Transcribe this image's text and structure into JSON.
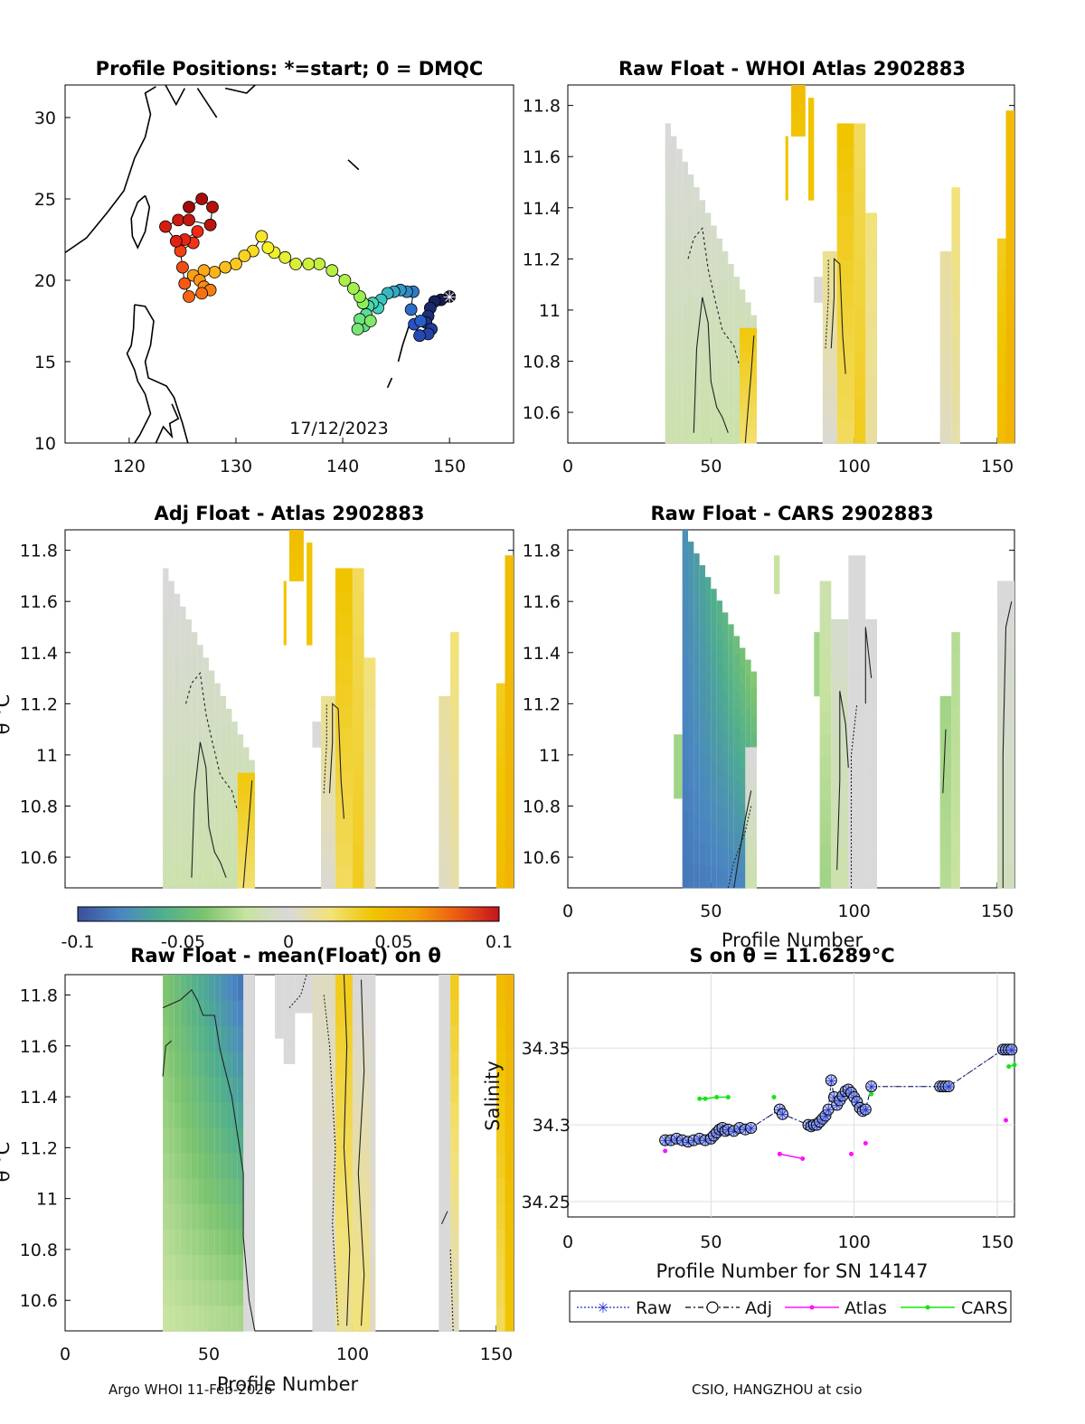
{
  "colors": {
    "scale": [
      "#3b4f9a",
      "#4a86c2",
      "#4fae8d",
      "#7cc46f",
      "#c8e3a0",
      "#d9d9d9",
      "#f2e27a",
      "#f0c500",
      "#f3a20a",
      "#ec5c12",
      "#c4141e"
    ],
    "raw_marker": "#1f2fd0",
    "adj_marker": "#000000",
    "atlas": "#ff10ff",
    "cars": "#14e614"
  },
  "footer": {
    "left": "Argo WHOI 11-Feb-2026",
    "right": "CSIO, HANGZHOU at csio"
  },
  "chart_data": [
    {
      "id": "positions",
      "type": "scatter",
      "title": "Profile Positions: *=start; 0 = DMQC",
      "xlim": [
        114,
        156
      ],
      "ylim": [
        10,
        32
      ],
      "xticks": [
        "120",
        "130",
        "140",
        "150"
      ],
      "yticks": [
        "10",
        "15",
        "20",
        "25",
        "30"
      ],
      "date_label": "17/12/2023",
      "track": [
        [
          150.0,
          19.0
        ],
        [
          149.2,
          18.8
        ],
        [
          148.6,
          18.7
        ],
        [
          148.2,
          18.3
        ],
        [
          148.0,
          17.8
        ],
        [
          147.8,
          17.4
        ],
        [
          148.3,
          17.0
        ],
        [
          148.0,
          16.7
        ],
        [
          147.2,
          16.6
        ],
        [
          146.7,
          17.3
        ],
        [
          147.3,
          17.5
        ],
        [
          146.4,
          18.2
        ],
        [
          146.6,
          19.3
        ],
        [
          146.0,
          19.3
        ],
        [
          145.4,
          19.4
        ],
        [
          144.8,
          19.3
        ],
        [
          144.2,
          19.2
        ],
        [
          143.6,
          18.8
        ],
        [
          143.3,
          18.3
        ],
        [
          142.8,
          18.6
        ],
        [
          142.4,
          18.4
        ],
        [
          142.2,
          17.9
        ],
        [
          142.0,
          17.2
        ],
        [
          141.6,
          17.6
        ],
        [
          141.4,
          17.0
        ],
        [
          142.6,
          17.5
        ],
        [
          141.9,
          18.6
        ],
        [
          141.6,
          19.0
        ],
        [
          141.0,
          19.5
        ],
        [
          140.2,
          20.0
        ],
        [
          139.0,
          20.6
        ],
        [
          137.8,
          21.0
        ],
        [
          136.8,
          21.0
        ],
        [
          135.6,
          21.0
        ],
        [
          134.6,
          21.4
        ],
        [
          133.6,
          21.7
        ],
        [
          133.0,
          22.0
        ],
        [
          132.4,
          22.7
        ],
        [
          131.6,
          21.8
        ],
        [
          130.8,
          21.5
        ],
        [
          130.0,
          21.0
        ],
        [
          129.0,
          20.8
        ],
        [
          128.0,
          20.5
        ],
        [
          127.0,
          20.6
        ],
        [
          126.0,
          20.3
        ],
        [
          126.6,
          20.0
        ],
        [
          127.0,
          19.6
        ],
        [
          127.6,
          19.4
        ],
        [
          126.8,
          19.2
        ],
        [
          125.6,
          19.0
        ],
        [
          125.2,
          19.8
        ],
        [
          125.0,
          20.8
        ],
        [
          124.8,
          21.8
        ],
        [
          126.0,
          22.3
        ],
        [
          126.4,
          23.0
        ],
        [
          125.2,
          22.5
        ],
        [
          124.4,
          22.4
        ],
        [
          123.4,
          23.3
        ],
        [
          124.6,
          23.7
        ],
        [
          125.6,
          23.7
        ],
        [
          127.6,
          23.4
        ],
        [
          127.8,
          24.5
        ],
        [
          126.8,
          25.0
        ],
        [
          125.6,
          24.5
        ]
      ]
    },
    {
      "id": "raw_whoi",
      "type": "heatmap",
      "title": "Raw Float - WHOI Atlas  2902883",
      "xlim": [
        0,
        156
      ],
      "ylim": [
        10.48,
        11.88
      ],
      "xticks": [
        "0",
        "50",
        "100",
        "150"
      ],
      "yticks": [
        "10.6",
        "10.8",
        "11",
        "11.2",
        "11.4",
        "11.6",
        "11.8"
      ]
    },
    {
      "id": "adj_atlas",
      "type": "heatmap",
      "title": "Adj Float - Atlas  2902883",
      "ylabel": "θ °C",
      "xlim": [
        0,
        156
      ],
      "ylim": [
        10.48,
        11.88
      ],
      "yticks": [
        "10.6",
        "10.8",
        "11",
        "11.2",
        "11.4",
        "11.6",
        "11.8"
      ]
    },
    {
      "id": "raw_cars",
      "type": "heatmap",
      "title": "Raw Float - CARS  2902883",
      "xlabel": "Profile Number",
      "xlim": [
        0,
        156
      ],
      "ylim": [
        10.48,
        11.88
      ],
      "xticks": [
        "0",
        "50",
        "100",
        "150"
      ],
      "yticks": [
        "10.6",
        "10.8",
        "11",
        "11.2",
        "11.4",
        "11.6",
        "11.8"
      ]
    },
    {
      "id": "raw_mean",
      "type": "heatmap",
      "title": "Raw Float - mean(Float) on θ",
      "xlabel": "Profile Number",
      "ylabel": "θ °C",
      "xlim": [
        0,
        156
      ],
      "ylim": [
        10.48,
        11.88
      ],
      "xticks": [
        "0",
        "50",
        "100",
        "150"
      ],
      "yticks": [
        "10.6",
        "10.8",
        "11",
        "11.2",
        "11.4",
        "11.6",
        "11.8"
      ]
    },
    {
      "id": "colorbar",
      "type": "colorbar",
      "range": [
        -0.1,
        0.1
      ],
      "ticks": [
        "-0.1",
        "-0.05",
        "0",
        "0.05",
        "0.1"
      ]
    },
    {
      "id": "salinity",
      "type": "line",
      "title": "S on θ = 11.6289°C",
      "xlabel": "Profile Number for SN 14147",
      "ylabel": "Salinity",
      "xlim": [
        0,
        156
      ],
      "ylim": [
        34.24,
        34.399
      ],
      "xticks": [
        "0",
        "50",
        "100",
        "150"
      ],
      "yticks": [
        "34.25",
        "34.3",
        "34.35"
      ],
      "legend": [
        "Raw",
        "Adj",
        "Atlas",
        "CARS"
      ],
      "series": [
        {
          "name": "Adj",
          "x": [
            34,
            36,
            38,
            40,
            42,
            44,
            46,
            48,
            50,
            51,
            52,
            53,
            54,
            55,
            56,
            58,
            60,
            62,
            64,
            74,
            75,
            84,
            85,
            86,
            87,
            88,
            89,
            90,
            91,
            92,
            93,
            94,
            95,
            96,
            97,
            98,
            99,
            100,
            101,
            102,
            103,
            104,
            106,
            130,
            131,
            132,
            133,
            152,
            153,
            154,
            155
          ],
          "y": [
            34.29,
            34.29,
            34.291,
            34.29,
            34.289,
            34.29,
            34.291,
            34.29,
            34.291,
            34.293,
            34.295,
            34.297,
            34.298,
            34.296,
            34.297,
            34.296,
            34.298,
            34.297,
            34.298,
            34.31,
            34.307,
            34.3,
            34.299,
            34.3,
            34.3,
            34.302,
            34.304,
            34.306,
            34.31,
            34.329,
            34.318,
            34.313,
            34.316,
            34.319,
            34.322,
            34.323,
            34.321,
            34.318,
            34.315,
            34.311,
            34.309,
            34.31,
            34.325,
            34.325,
            34.325,
            34.325,
            34.325,
            34.349,
            34.349,
            34.349,
            34.349
          ]
        },
        {
          "name": "Atlas",
          "segments": [
            [
              [
                34,
                34.283
              ]
            ],
            [
              [
                74,
                34.281
              ],
              [
                82,
                34.278
              ]
            ],
            [
              [
                99,
                34.281
              ]
            ],
            [
              [
                104,
                34.288
              ]
            ],
            [
              [
                153,
                34.303
              ]
            ]
          ]
        },
        {
          "name": "CARS",
          "segments": [
            [
              [
                46,
                34.317
              ],
              [
                48,
                34.317
              ],
              [
                52,
                34.318
              ],
              [
                56,
                34.318
              ]
            ],
            [
              [
                72,
                34.318
              ]
            ],
            [
              [
                106,
                34.32
              ]
            ],
            [
              [
                154,
                34.338
              ],
              [
                156,
                34.339
              ]
            ]
          ]
        }
      ]
    }
  ]
}
